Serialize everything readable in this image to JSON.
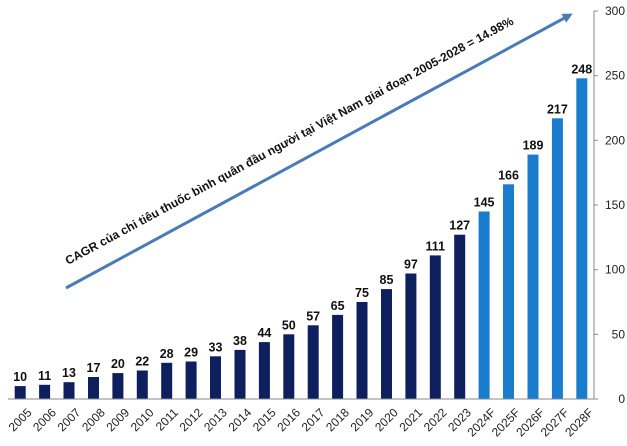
{
  "chart_data": {
    "type": "bar",
    "categories": [
      "2005",
      "2006",
      "2007",
      "2008",
      "2009",
      "2010",
      "2011",
      "2012",
      "2013",
      "2014",
      "2015",
      "2016",
      "2017",
      "2018",
      "2019",
      "2020",
      "2021",
      "2022",
      "2023",
      "2024F",
      "2025F",
      "2026F",
      "2027F",
      "2028F"
    ],
    "values": [
      10,
      11,
      13,
      17,
      20,
      22,
      28,
      29,
      33,
      38,
      44,
      50,
      57,
      65,
      75,
      85,
      97,
      111,
      127,
      145,
      166,
      189,
      217,
      248
    ],
    "bar_colors": [
      "#0d1f5c",
      "#0d1f5c",
      "#0d1f5c",
      "#0d1f5c",
      "#0d1f5c",
      "#0d1f5c",
      "#0d1f5c",
      "#0d1f5c",
      "#0d1f5c",
      "#0d1f5c",
      "#0d1f5c",
      "#0d1f5c",
      "#0d1f5c",
      "#0d1f5c",
      "#0d1f5c",
      "#0d1f5c",
      "#0d1f5c",
      "#0d1f5c",
      "#0d1f5c",
      "#1a7ccc",
      "#1a7ccc",
      "#1a7ccc",
      "#1a7ccc",
      "#1a7ccc"
    ],
    "ylim": [
      0,
      300
    ],
    "yticks": [
      0,
      50,
      100,
      150,
      200,
      250,
      300
    ],
    "y_axis_position": "right",
    "grid": false,
    "legend": "none",
    "annotation": {
      "text": "CAGR của chi tiêu thuốc bình quân đầu người tại Việt Nam giai đoạn 2005-2028 = 14.98%",
      "arrow_color": "#4a7ab8"
    }
  }
}
